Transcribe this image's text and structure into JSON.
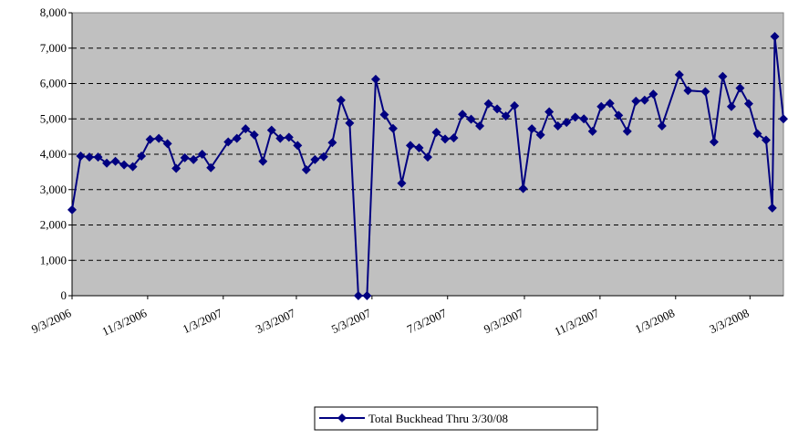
{
  "chart_data": {
    "type": "line",
    "x": [
      "9/3/2006",
      "9/10/2006",
      "9/17/2006",
      "9/24/2006",
      "10/1/2006",
      "10/8/2006",
      "10/15/2006",
      "10/22/2006",
      "10/29/2006",
      "11/5/2006",
      "11/12/2006",
      "11/19/2006",
      "11/26/2006",
      "12/3/2006",
      "12/10/2006",
      "12/17/2006",
      "12/24/2006",
      "1/7/2007",
      "1/14/2007",
      "1/21/2007",
      "1/28/2007",
      "2/4/2007",
      "2/11/2007",
      "2/18/2007",
      "2/25/2007",
      "3/4/2007",
      "3/11/2007",
      "3/18/2007",
      "3/25/2007",
      "4/1/2007",
      "4/8/2007",
      "4/15/2007",
      "4/22/2007",
      "4/29/2007",
      "5/6/2007",
      "5/13/2007",
      "5/20/2007",
      "5/27/2007",
      "6/3/2007",
      "6/10/2007",
      "6/17/2007",
      "6/24/2007",
      "7/1/2007",
      "7/8/2007",
      "7/15/2007",
      "7/22/2007",
      "7/29/2007",
      "8/5/2007",
      "8/12/2007",
      "8/19/2007",
      "8/26/2007",
      "9/2/2007",
      "9/9/2007",
      "9/16/2007",
      "9/23/2007",
      "9/30/2007",
      "10/7/2007",
      "10/14/2007",
      "10/21/2007",
      "10/28/2007",
      "11/4/2007",
      "11/11/2007",
      "11/18/2007",
      "11/25/2007",
      "12/2/2007",
      "12/9/2007",
      "12/16/2007",
      "12/23/2007",
      "1/6/2008",
      "1/13/2008",
      "1/27/2008",
      "2/3/2008",
      "2/10/2008",
      "2/17/2008",
      "2/24/2008",
      "3/2/2008",
      "3/9/2008",
      "3/16/2008",
      "3/21/2008",
      "3/23/2008",
      "3/30/2008"
    ],
    "series": [
      {
        "name": "Total Buckhead Thru 3/30/08",
        "color": "#000080",
        "values": [
          2430,
          3950,
          3920,
          3920,
          3750,
          3800,
          3700,
          3650,
          3950,
          4420,
          4450,
          4300,
          3600,
          3900,
          3850,
          4000,
          3620,
          4350,
          4450,
          4720,
          4550,
          3800,
          4680,
          4450,
          4480,
          4250,
          3560,
          3850,
          3930,
          4330,
          5530,
          4880,
          0,
          0,
          6120,
          5120,
          4730,
          3180,
          4250,
          4180,
          3920,
          4620,
          4430,
          4460,
          5130,
          4990,
          4800,
          5430,
          5280,
          5080,
          5370,
          3030,
          4720,
          4550,
          5200,
          4800,
          4900,
          5050,
          5000,
          4650,
          5350,
          5440,
          5100,
          4650,
          5500,
          5530,
          5700,
          4800,
          6250,
          5800,
          5770,
          4350,
          6200,
          5350,
          5870,
          5430,
          4580,
          4400,
          2480,
          7330,
          5000
        ]
      }
    ],
    "xlim": [
      "9/3/2006",
      "3/30/2008"
    ],
    "xticks": [
      "9/3/2006",
      "11/3/2006",
      "1/3/2007",
      "3/3/2007",
      "5/3/2007",
      "7/3/2007",
      "9/3/2007",
      "11/3/2007",
      "1/3/2008",
      "3/3/2008"
    ],
    "ylim": [
      0,
      8000
    ],
    "yticks": [
      0,
      {
        "value": 1000,
        "label": "1,000"
      },
      {
        "value": 2000,
        "label": "2,000"
      },
      {
        "value": 3000,
        "label": "3,000"
      },
      {
        "value": 4000,
        "label": "4,000"
      },
      {
        "value": 5000,
        "label": "5,000"
      },
      {
        "value": 6000,
        "label": "6,000"
      },
      {
        "value": 7000,
        "label": "7,000"
      },
      {
        "value": 8000,
        "label": "8,000"
      }
    ],
    "grid": true,
    "legend": "bottom"
  }
}
